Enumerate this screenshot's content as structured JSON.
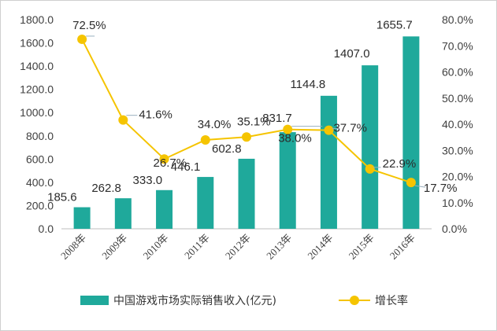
{
  "chart_data": {
    "type": "bar+line",
    "categories": [
      "2008年",
      "2009年",
      "2010年",
      "2011年",
      "2012年",
      "2013年",
      "2014年",
      "2015年",
      "2016年"
    ],
    "series": [
      {
        "name": "中国游戏市场实际销售收入(亿元)",
        "type": "bar",
        "axis": "left",
        "color": "#1fa99b",
        "values": [
          185.6,
          262.8,
          333.0,
          446.1,
          602.8,
          831.7,
          1144.8,
          1407.0,
          1655.7
        ],
        "value_labels": [
          "185.6",
          "262.8",
          "333.0",
          "446.1",
          "602.8",
          "831.7",
          "1144.8",
          "1407.0",
          "1655.7"
        ]
      },
      {
        "name": "增长率",
        "type": "line",
        "axis": "right",
        "color": "#f5c400",
        "values": [
          72.5,
          41.6,
          26.7,
          34.0,
          35.1,
          38.0,
          37.7,
          22.9,
          17.7
        ],
        "value_labels": [
          "72.5%",
          "41.6%",
          "26.7%",
          "34.0%",
          "35.1%",
          "38.0%",
          "37.7%",
          "22.9%",
          "17.7%"
        ]
      }
    ],
    "y_left": {
      "ylim": [
        0,
        1800
      ],
      "ticks": [
        "0.0",
        "200.0",
        "400.0",
        "600.0",
        "800.0",
        "1000.0",
        "1200.0",
        "1400.0",
        "1600.0",
        "1800.0"
      ]
    },
    "y_right": {
      "ylim": [
        0,
        80
      ],
      "ticks": [
        "0.0%",
        "10.0%",
        "20.0%",
        "30.0%",
        "40.0%",
        "50.0%",
        "60.0%",
        "70.0%",
        "80.0%"
      ]
    },
    "grid": false,
    "legend_position": "bottom"
  },
  "legend": {
    "bar_label": "中国游戏市场实际销售收入(亿元)",
    "line_label": "增长率"
  },
  "colors": {
    "bar": "#1fa99b",
    "line": "#f5c400",
    "axis": "#bfbfbf",
    "leader": "#9ab0bf"
  }
}
